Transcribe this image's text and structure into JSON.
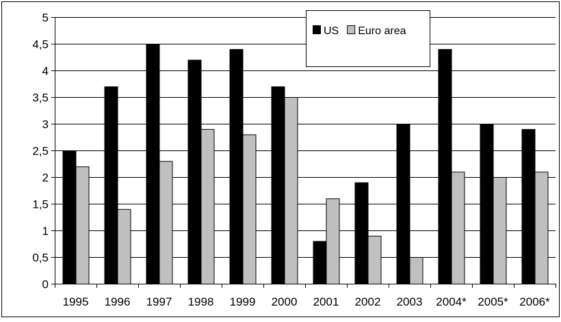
{
  "chart_data": {
    "type": "bar",
    "title": "",
    "xlabel": "",
    "ylabel": "",
    "categories": [
      "1995",
      "1996",
      "1997",
      "1998",
      "1999",
      "2000",
      "2001",
      "2002",
      "2003",
      "2004*",
      "2005*",
      "2006*"
    ],
    "series": [
      {
        "name": "US",
        "color": "#000000",
        "values": [
          2.5,
          3.7,
          4.5,
          4.2,
          4.4,
          3.7,
          0.8,
          1.9,
          3.0,
          4.4,
          3.0,
          2.9
        ]
      },
      {
        "name": "Euro area",
        "color": "#c0c0c0",
        "values": [
          2.2,
          1.4,
          2.3,
          2.9,
          2.8,
          3.5,
          1.6,
          0.9,
          0.5,
          2.1,
          2.0,
          2.1
        ]
      }
    ],
    "ylim": [
      0,
      5
    ],
    "yticks": [
      0,
      0.5,
      1,
      1.5,
      2,
      2.5,
      3,
      3.5,
      4,
      4.5,
      5
    ],
    "ytick_labels": [
      "0",
      "0,5",
      "1",
      "1,5",
      "2",
      "2,5",
      "3",
      "3,5",
      "4",
      "4,5",
      "5"
    ],
    "grid": true,
    "legend_position": "top-right"
  }
}
